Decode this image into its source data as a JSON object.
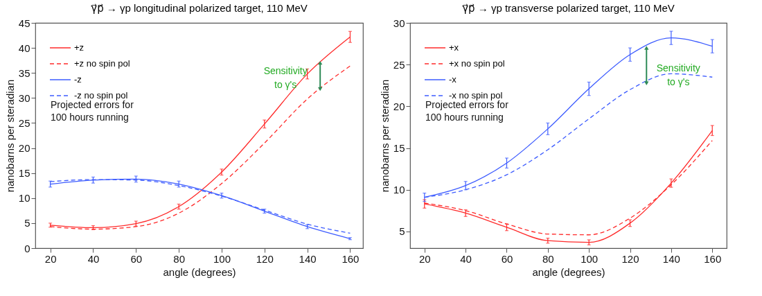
{
  "chart_data": [
    {
      "type": "line",
      "title": "γ⃗p⃗ → γp longitudinal polarized target, 110 MeV",
      "xlabel": "angle (degrees)",
      "ylabel": "nanobarns per steradian",
      "x": [
        20,
        40,
        60,
        80,
        100,
        120,
        140,
        160
      ],
      "series": [
        {
          "name": "+z",
          "color": "#ff2a2a",
          "line_style": "solid",
          "values": [
            4.6,
            4.1,
            4.9,
            8.3,
            15.2,
            24.8,
            34.8,
            42.2
          ],
          "errors": [
            0.4,
            0.4,
            0.5,
            0.5,
            0.6,
            0.8,
            1.0,
            1.1
          ]
        },
        {
          "name": "+z no spin pol",
          "color": "#ff2a2a",
          "line_style": "dashed",
          "values": [
            4.3,
            3.8,
            4.3,
            7.0,
            12.9,
            21.0,
            29.8,
            36.4
          ]
        },
        {
          "name": "-z",
          "color": "#3d5cff",
          "line_style": "solid",
          "values": [
            12.8,
            13.6,
            13.8,
            12.8,
            10.5,
            7.4,
            4.3,
            1.9
          ],
          "errors": [
            0.6,
            0.6,
            0.6,
            0.6,
            0.5,
            0.4,
            0.4,
            0.2
          ]
        },
        {
          "name": "-z no spin pol",
          "color": "#3d5cff",
          "line_style": "dashed",
          "values": [
            13.3,
            13.7,
            13.6,
            12.5,
            10.4,
            7.6,
            4.8,
            3.0
          ]
        }
      ],
      "xlim": [
        13,
        166
      ],
      "xticks": [
        20,
        40,
        60,
        80,
        100,
        120,
        140,
        160
      ],
      "ylim": [
        0,
        45
      ],
      "yticks": [
        0,
        5,
        10,
        15,
        20,
        25,
        30,
        35,
        40,
        45
      ],
      "legend": "top left",
      "grid": false,
      "annotations": [
        "Projected errors for 100 hours running",
        {
          "text": "Sensitivity to γ's",
          "x": 146,
          "y": 37.0
        }
      ]
    },
    {
      "type": "line",
      "title": "γ⃗p⃗ → γp transverse polarized target, 110 MeV",
      "xlabel": "angle (degrees)",
      "ylabel": "nanobarns per steradian",
      "x": [
        20,
        40,
        60,
        80,
        100,
        120,
        140,
        160
      ],
      "series": [
        {
          "name": "+x",
          "color": "#ff2a2a",
          "line_style": "solid",
          "values": [
            8.3,
            7.2,
            5.5,
            3.9,
            3.7,
            6.0,
            10.8,
            17.1
          ],
          "errors": [
            0.5,
            0.4,
            0.4,
            0.3,
            0.3,
            0.4,
            0.5,
            0.6
          ]
        },
        {
          "name": "+x no spin pol",
          "color": "#ff2a2a",
          "line_style": "dashed",
          "values": [
            8.4,
            7.5,
            5.9,
            4.7,
            4.6,
            6.6,
            10.6,
            15.9
          ]
        },
        {
          "name": "-x",
          "color": "#3d5cff",
          "line_style": "solid",
          "values": [
            9.1,
            10.5,
            13.2,
            17.3,
            22.1,
            26.2,
            28.2,
            27.2
          ],
          "errors": [
            0.5,
            0.5,
            0.6,
            0.7,
            0.8,
            0.8,
            0.8,
            0.8
          ]
        },
        {
          "name": "-x no spin pol",
          "color": "#3d5cff",
          "line_style": "dashed",
          "values": [
            9.1,
            10.0,
            11.8,
            14.8,
            18.5,
            22.0,
            23.9,
            23.5
          ]
        }
      ],
      "xlim": [
        13,
        167
      ],
      "xticks": [
        20,
        40,
        60,
        80,
        100,
        120,
        140,
        160
      ],
      "ylim": [
        3,
        30
      ],
      "yticks": [
        5,
        10,
        15,
        20,
        25,
        30
      ],
      "legend": "top left",
      "grid": false,
      "annotations": [
        "Projected errors for 100 hours running",
        {
          "text": "Sensitivity to γ's",
          "x": 128,
          "y": 27.0
        }
      ]
    }
  ]
}
